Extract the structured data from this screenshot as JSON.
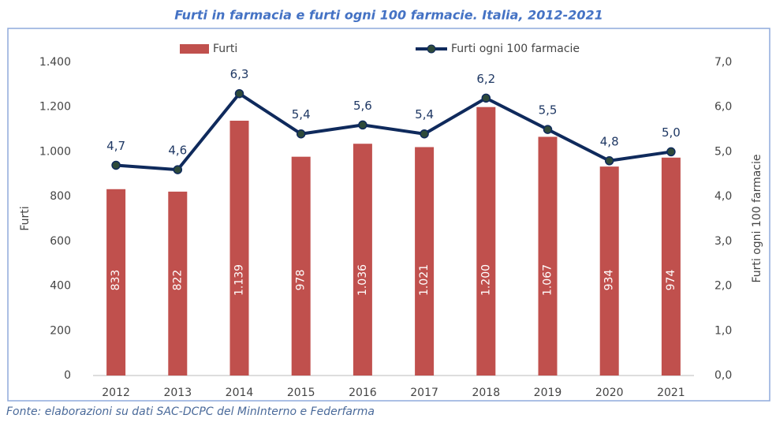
{
  "chart_data": {
    "type": "bar",
    "title": "Furti in farmacia e furti ogni 100 farmacie. Italia, 2012-2021",
    "source": "Fonte: elaborazioni su dati SAC-DCPC del MinInterno e Federfarma",
    "ylabel": "Furti",
    "y2label": "Furti ogni 100 farmacie",
    "categories": [
      "2012",
      "2013",
      "2014",
      "2015",
      "2016",
      "2017",
      "2018",
      "2019",
      "2020",
      "2021"
    ],
    "series": [
      {
        "name": "Furti",
        "type": "bar",
        "color": "#c0504d",
        "values": [
          833,
          822,
          1139,
          978,
          1036,
          1021,
          1200,
          1067,
          934,
          974
        ],
        "value_labels": [
          "833",
          "822",
          "1.139",
          "978",
          "1.036",
          "1.021",
          "1.200",
          "1.067",
          "934",
          "974"
        ]
      },
      {
        "name": "Furti ogni 100 farmacie",
        "type": "line",
        "axis": "y2",
        "color": "#0f2a5c",
        "values": [
          4.7,
          4.6,
          6.3,
          5.4,
          5.6,
          5.4,
          6.2,
          5.5,
          4.8,
          5.0
        ],
        "value_labels": [
          "4,7",
          "4,6",
          "6,3",
          "5,4",
          "5,6",
          "5,4",
          "6,2",
          "5,5",
          "4,8",
          "5,0"
        ]
      }
    ],
    "ylim": [
      0,
      1400
    ],
    "yticks": [
      0,
      200,
      400,
      600,
      800,
      {
        "value": 1000,
        "label": "1.000"
      },
      {
        "value": 1200,
        "label": "1.200"
      },
      {
        "value": 1400,
        "label": "1.400"
      }
    ],
    "y2lim": [
      0,
      7
    ],
    "y2ticks": [
      {
        "value": 0,
        "label": "0,0"
      },
      {
        "value": 1,
        "label": "1,0"
      },
      {
        "value": 2,
        "label": "2,0"
      },
      {
        "value": 3,
        "label": "3,0"
      },
      {
        "value": 4,
        "label": "4,0"
      },
      {
        "value": 5,
        "label": "5,0"
      },
      {
        "value": 6,
        "label": "6,0"
      },
      {
        "value": 7,
        "label": "7,0"
      }
    ],
    "grid": false,
    "legend": "top"
  }
}
